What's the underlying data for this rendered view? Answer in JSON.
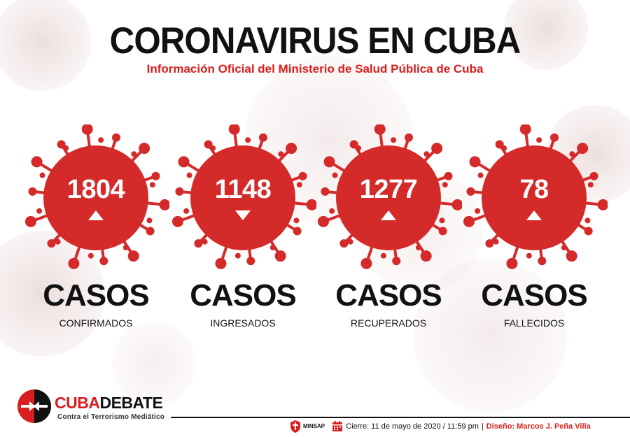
{
  "header": {
    "title": "CORONAVIRUS EN CUBA",
    "subtitle": "Información Oficial del Ministerio de Salud Pública de Cuba"
  },
  "stats": [
    {
      "value": "1804",
      "trend": "up",
      "label": "CASOS",
      "sublabel": "CONFIRMADOS"
    },
    {
      "value": "1148",
      "trend": "down",
      "label": "CASOS",
      "sublabel": "INGRESADOS"
    },
    {
      "value": "1277",
      "trend": "up",
      "label": "CASOS",
      "sublabel": "RECUPERADOS"
    },
    {
      "value": "78",
      "trend": "up",
      "label": "CASOS",
      "sublabel": "FALLECIDOS"
    }
  ],
  "logo": {
    "name_part1": "CUBA",
    "name_part2": "DEBATE",
    "tagline": "Contra el Terrorismo Mediático"
  },
  "footer": {
    "ministry": "MINSAP",
    "closing": "Cierre: 11 de mayo de 2020 / 11:59 pm",
    "separator": "|",
    "design": "Diseño: Marcos J. Peña Villa"
  },
  "colors": {
    "accent_red": "#d81e1e",
    "text_dark": "#111111",
    "virus_red": "#d42a2a"
  },
  "icons": {
    "trend_up": "triangle-up-icon",
    "trend_down": "triangle-down-icon",
    "calendar": "calendar-icon"
  }
}
